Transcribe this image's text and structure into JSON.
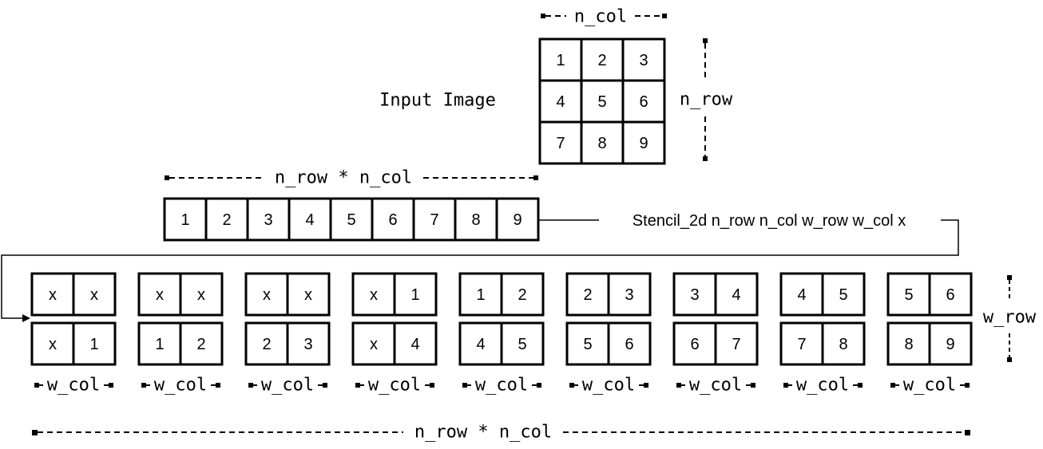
{
  "input": {
    "title": "Input Image",
    "grid": [
      "1",
      "2",
      "3",
      "4",
      "5",
      "6",
      "7",
      "8",
      "9"
    ],
    "col_label": "n_col",
    "row_label": "n_row"
  },
  "flattened": {
    "label": "n_row * n_col",
    "cells": [
      "1",
      "2",
      "3",
      "4",
      "5",
      "6",
      "7",
      "8",
      "9"
    ]
  },
  "call": {
    "label": "Stencil_2d n_row n_col w_row w_col x"
  },
  "windows": {
    "items": [
      [
        "x",
        "x",
        "x",
        "1"
      ],
      [
        "x",
        "x",
        "1",
        "2"
      ],
      [
        "x",
        "x",
        "2",
        "3"
      ],
      [
        "x",
        "1",
        "x",
        "4"
      ],
      [
        "1",
        "2",
        "4",
        "5"
      ],
      [
        "2",
        "3",
        "5",
        "6"
      ],
      [
        "3",
        "4",
        "6",
        "7"
      ],
      [
        "4",
        "5",
        "7",
        "8"
      ],
      [
        "5",
        "6",
        "8",
        "9"
      ]
    ],
    "col_label": "w_col",
    "row_label": "w_row",
    "total_label": "n_row * n_col"
  }
}
